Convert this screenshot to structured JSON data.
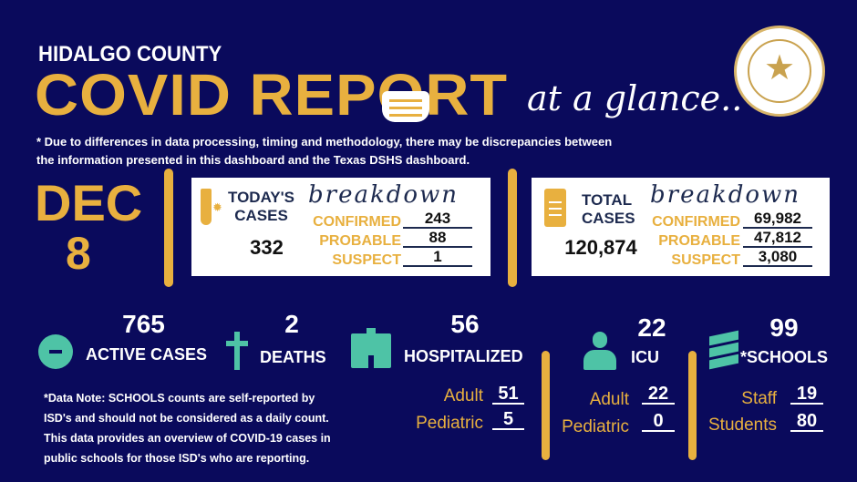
{
  "header": {
    "county": "HIDALGO COUNTY",
    "title": "COVID REPORT",
    "tagline": "at a glance..",
    "seal_text": "THE COUNTY OF HIDALGO TEXAS",
    "disclaimer_1": "* Due to differences in data processing, timing and methodology, there may be discrepancies between",
    "disclaimer_2": "the information presented in this dashboard and the Texas DSHS dashboard."
  },
  "date": {
    "month": "DEC",
    "day": "8"
  },
  "today": {
    "title_1": "TODAY'S",
    "title_2": "CASES",
    "total": "332",
    "breakdown_label": "breakdown",
    "confirmed_label": "CONFIRMED",
    "confirmed": "243",
    "probable_label": "PROBABLE",
    "probable": "88",
    "suspect_label": "SUSPECT",
    "suspect": "1"
  },
  "total": {
    "title_1": "TOTAL",
    "title_2": "CASES",
    "total": "120,874",
    "breakdown_label": "breakdown",
    "confirmed_label": "CONFIRMED",
    "confirmed": "69,982",
    "probable_label": "PROBABLE",
    "probable": "47,812",
    "suspect_label": "SUSPECT",
    "suspect": "3,080"
  },
  "stats": {
    "active": {
      "value": "765",
      "label": "ACTIVE CASES",
      "icon": "minus-circle-icon"
    },
    "deaths": {
      "value": "2",
      "label": "DEATHS",
      "icon": "cross-icon"
    },
    "hospitalized": {
      "value": "56",
      "label": "HOSPITALIZED",
      "icon": "hospital-icon",
      "adult_label": "Adult",
      "adult": "51",
      "pediatric_label": "Pediatric",
      "pediatric": "5"
    },
    "icu": {
      "value": "22",
      "label": "ICU",
      "icon": "doctor-icon",
      "adult_label": "Adult",
      "adult": "22",
      "pediatric_label": "Pediatric",
      "pediatric": "0"
    },
    "schools": {
      "value": "99",
      "label": "*SCHOOLS",
      "icon": "books-icon",
      "staff_label": "Staff",
      "staff": "19",
      "students_label": "Students",
      "students": "80"
    }
  },
  "note": [
    "*Data Note: SCHOOLS counts are self-reported by",
    "ISD's and should not be considered as a daily count.",
    "This data provides an overview of COVID-19 cases in",
    "public schools for those ISD's who are reporting."
  ],
  "colors": {
    "background": "#0a0a5c",
    "gold": "#e8b03f",
    "teal": "#4ec3a6",
    "navy_text": "#1d2a4f"
  }
}
